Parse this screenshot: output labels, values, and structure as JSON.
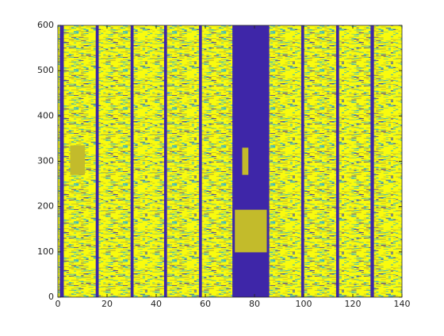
{
  "chart_data": {
    "type": "heatmap",
    "xlim": [
      0,
      140
    ],
    "ylim": [
      0,
      600
    ],
    "xticks": [
      0,
      20,
      40,
      60,
      80,
      100,
      120,
      140
    ],
    "yticks": [
      0,
      100,
      200,
      300,
      400,
      500,
      600
    ],
    "regions": [
      {
        "x": [
          0.8,
          2.4
        ],
        "y": [
          0,
          600
        ],
        "color": "#3e26a8"
      },
      {
        "x": [
          15.4,
          16.6
        ],
        "y": [
          0,
          600
        ],
        "color": "#3e26a8"
      },
      {
        "x": [
          29.6,
          30.8
        ],
        "y": [
          0,
          600
        ],
        "color": "#3e26a8"
      },
      {
        "x": [
          43.2,
          44.4
        ],
        "y": [
          0,
          600
        ],
        "color": "#3e26a8"
      },
      {
        "x": [
          57.4,
          58.6
        ],
        "y": [
          0,
          600
        ],
        "color": "#3e26a8"
      },
      {
        "x": [
          71,
          86
        ],
        "y": [
          0,
          600
        ],
        "color": "#3e26a8"
      },
      {
        "x": [
          99,
          100.2
        ],
        "y": [
          0,
          600
        ],
        "color": "#3e26a8"
      },
      {
        "x": [
          113.2,
          114.4
        ],
        "y": [
          0,
          600
        ],
        "color": "#3e26a8"
      },
      {
        "x": [
          127.2,
          128.6
        ],
        "y": [
          0,
          600
        ],
        "color": "#3e26a8"
      },
      {
        "x": [
          5,
          11
        ],
        "y": [
          270,
          335
        ],
        "color": "#c3bb2b"
      },
      {
        "x": [
          75,
          77.5
        ],
        "y": [
          270,
          330
        ],
        "color": "#c3bb2b"
      },
      {
        "x": [
          72,
          85
        ],
        "y": [
          99,
          193
        ],
        "color": "#c3bb2b"
      }
    ]
  }
}
